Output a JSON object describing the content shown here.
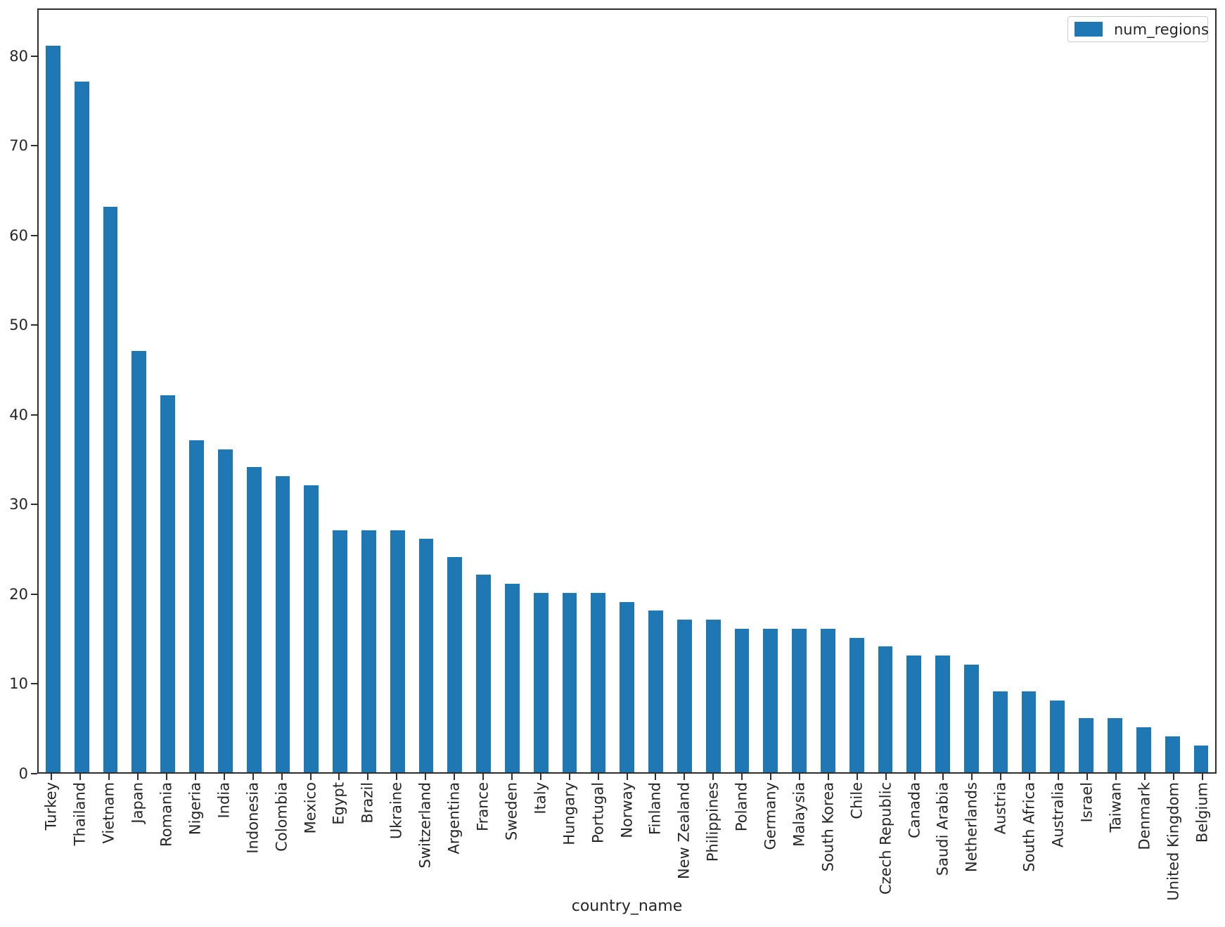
{
  "figure": {
    "background": "#ffffff",
    "text_color": "#262626",
    "spine_color": "#2e2e2e"
  },
  "chart_data": {
    "type": "bar",
    "title": "",
    "xlabel": "country_name",
    "ylabel": "",
    "grid": false,
    "legend_position": "upper right",
    "bar_color": "#1f77b4",
    "ylim": [
      0,
      85.3
    ],
    "yticks": [
      0,
      10,
      20,
      30,
      40,
      50,
      60,
      70,
      80
    ],
    "categories": [
      "Turkey",
      "Thailand",
      "Vietnam",
      "Japan",
      "Romania",
      "Nigeria",
      "India",
      "Indonesia",
      "Colombia",
      "Mexico",
      "Egypt",
      "Brazil",
      "Ukraine",
      "Switzerland",
      "Argentina",
      "France",
      "Sweden",
      "Italy",
      "Hungary",
      "Portugal",
      "Norway",
      "Finland",
      "New Zealand",
      "Philippines",
      "Poland",
      "Germany",
      "Malaysia",
      "South Korea",
      "Chile",
      "Czech Republic",
      "Canada",
      "Saudi Arabia",
      "Netherlands",
      "Austria",
      "South Africa",
      "Australia",
      "Israel",
      "Taiwan",
      "Denmark",
      "United Kingdom",
      "Belgium"
    ],
    "series": [
      {
        "name": "num_regions",
        "values": [
          81,
          77,
          63,
          47,
          42,
          37,
          36,
          34,
          33,
          32,
          27,
          27,
          27,
          26,
          24,
          22,
          21,
          20,
          20,
          20,
          19,
          18,
          17,
          17,
          16,
          16,
          16,
          16,
          15,
          14,
          13,
          13,
          12,
          9,
          9,
          8,
          6,
          6,
          5,
          4,
          3
        ]
      }
    ]
  },
  "legend": {
    "label": "num_regions",
    "swatch_color": "#1f77b4"
  }
}
